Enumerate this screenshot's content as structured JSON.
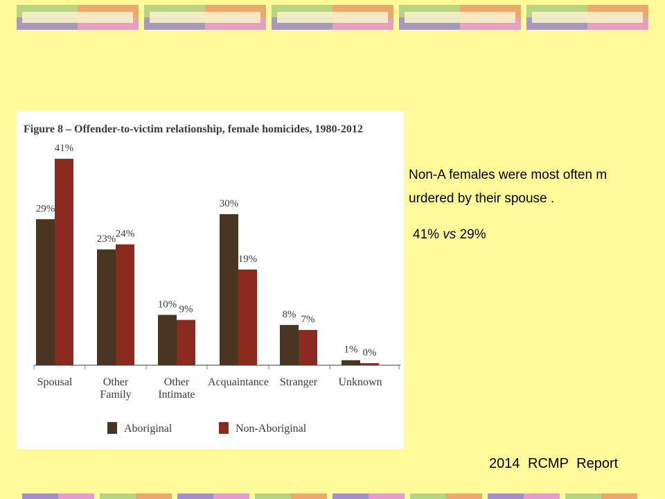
{
  "slide": {
    "text_line_1": "Non-A females were most often m",
    "text_line_2": "urdered by their spouse .",
    "stat_a": "41%",
    "stat_vs": "vs",
    "stat_b": "29%",
    "source": "2014  RCMP  Report"
  },
  "colors": {
    "background": "#FFFA99",
    "aboriginal": "#4A3422",
    "non_aboriginal": "#8A2A1F"
  },
  "chart_data": {
    "type": "bar",
    "title": "Figure 8 – Offender-to-victim relationship, female homicides, 1980-2012",
    "categories": [
      [
        "Spousal"
      ],
      [
        "Other",
        "Family"
      ],
      [
        "Other",
        "Intimate"
      ],
      [
        "Acquaintance"
      ],
      [
        "Stranger"
      ],
      [
        "Unknown"
      ]
    ],
    "series": [
      {
        "name": "Aboriginal",
        "values": [
          29,
          23,
          10,
          30,
          8,
          1
        ],
        "labels": [
          "29%",
          "23%",
          "10%",
          "30%",
          "8%",
          "1%"
        ]
      },
      {
        "name": "Non-Aboriginal",
        "values": [
          41,
          24,
          9,
          19,
          7,
          0
        ],
        "labels": [
          "41%",
          "24%",
          "9%",
          "19%",
          "7%",
          "0%"
        ]
      }
    ],
    "ylim": [
      0,
      45
    ],
    "grid": false,
    "legend_position": "bottom"
  }
}
